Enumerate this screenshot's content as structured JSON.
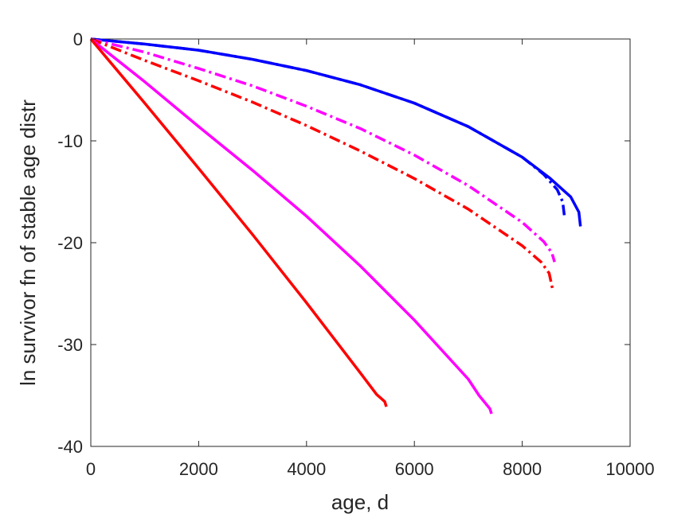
{
  "chart_data": {
    "type": "line",
    "title": "",
    "xlabel": "age, d",
    "ylabel": "ln survivor fn of stable age distr",
    "xlim": [
      0,
      10000
    ],
    "ylim": [
      -40,
      0
    ],
    "xticks": [
      0,
      2000,
      4000,
      6000,
      8000,
      10000
    ],
    "yticks": [
      0,
      -10,
      -20,
      -30,
      -40
    ],
    "grid": false,
    "legend": "none",
    "series": [
      {
        "color": "#0000ff",
        "style": "solid",
        "x": [
          0,
          1000,
          2000,
          3000,
          4000,
          5000,
          6000,
          7000,
          8000,
          8500,
          8900,
          9050,
          9080
        ],
        "y": [
          0,
          -0.5,
          -1.1,
          -2.0,
          -3.1,
          -4.5,
          -6.3,
          -8.6,
          -11.6,
          -13.6,
          -15.5,
          -17.0,
          -18.4
        ]
      },
      {
        "color": "#0000ff",
        "style": "dashdot",
        "x": [
          0,
          1000,
          2000,
          3000,
          4000,
          5000,
          6000,
          7000,
          8000,
          8400,
          8650,
          8750,
          8780
        ],
        "y": [
          0,
          -0.5,
          -1.1,
          -2.0,
          -3.1,
          -4.5,
          -6.3,
          -8.6,
          -11.6,
          -13.3,
          -14.8,
          -16.0,
          -17.3
        ]
      },
      {
        "color": "#ff00ff",
        "style": "dashdot",
        "x": [
          0,
          1000,
          2000,
          3000,
          4000,
          5000,
          6000,
          7000,
          8000,
          8400,
          8550,
          8600
        ],
        "y": [
          0,
          -1.3,
          -2.9,
          -4.6,
          -6.6,
          -8.8,
          -11.4,
          -14.4,
          -18.0,
          -19.9,
          -21.0,
          -21.9
        ]
      },
      {
        "color": "#ff0000",
        "style": "dashdot",
        "x": [
          0,
          1000,
          2000,
          3000,
          4000,
          5000,
          6000,
          7000,
          8000,
          8350,
          8500,
          8560
        ],
        "y": [
          0,
          -2.1,
          -4.1,
          -6.2,
          -8.5,
          -11.0,
          -13.7,
          -16.7,
          -20.3,
          -21.9,
          -23.0,
          -24.5
        ]
      },
      {
        "color": "#ff00ff",
        "style": "solid",
        "x": [
          0,
          1000,
          2000,
          3000,
          4000,
          5000,
          6000,
          7000,
          7200,
          7400,
          7430
        ],
        "y": [
          0,
          -4.2,
          -8.6,
          -12.9,
          -17.4,
          -22.3,
          -27.6,
          -33.4,
          -35.0,
          -36.3,
          -36.8
        ]
      },
      {
        "color": "#ff0000",
        "style": "solid",
        "x": [
          0,
          1000,
          2000,
          3000,
          4000,
          5000,
          5300,
          5450,
          5480
        ],
        "y": [
          0,
          -6.3,
          -12.7,
          -19.2,
          -25.9,
          -32.8,
          -34.9,
          -35.6,
          -36.1
        ]
      }
    ]
  }
}
